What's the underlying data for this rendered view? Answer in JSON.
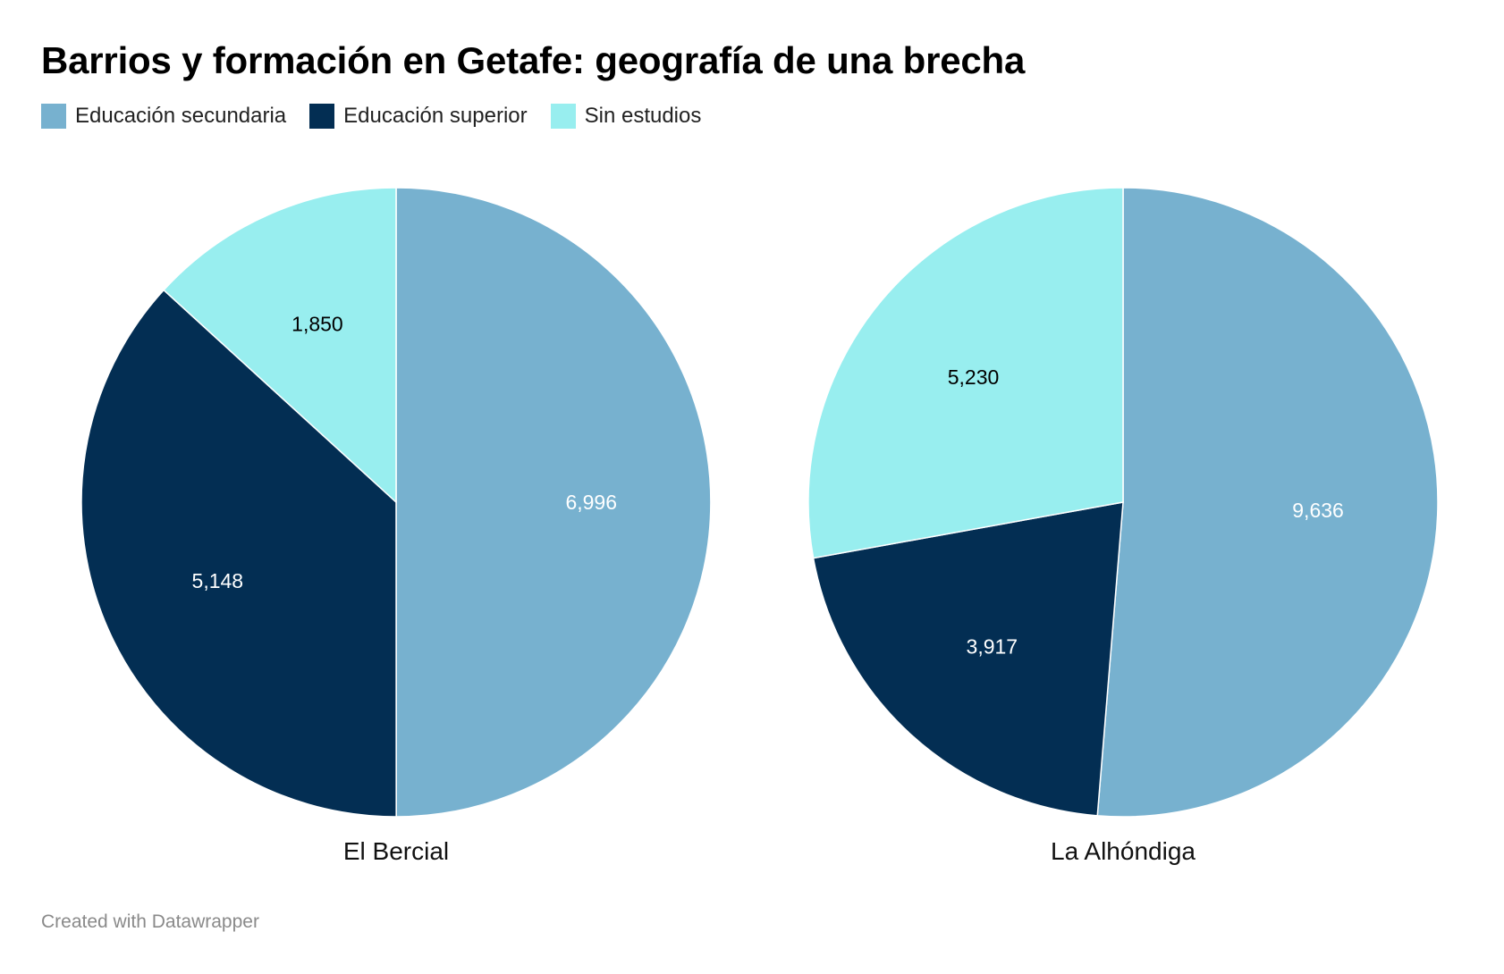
{
  "title": "Barrios y formación en Getafe: geografía de una brecha",
  "footer": "Created with Datawrapper",
  "legend": [
    {
      "label": "Educación secundaria",
      "color": "#77b1cf"
    },
    {
      "label": "Educación superior",
      "color": "#032e53"
    },
    {
      "label": "Sin estudios",
      "color": "#98eeef"
    }
  ],
  "chart_data": [
    {
      "type": "pie",
      "title": "El Bercial",
      "categories": [
        "Educación secundaria",
        "Educación superior",
        "Sin estudios"
      ],
      "values": [
        6996,
        5148,
        1850
      ],
      "labels": [
        "6,996",
        "5,148",
        "1,850"
      ],
      "colors": [
        "#77b1cf",
        "#032e53",
        "#98eeef"
      ],
      "label_colors": [
        "#ffffff",
        "#ffffff",
        "#000000"
      ]
    },
    {
      "type": "pie",
      "title": "La Alhóndiga",
      "categories": [
        "Educación secundaria",
        "Educación superior",
        "Sin estudios"
      ],
      "values": [
        9636,
        3917,
        5230
      ],
      "labels": [
        "9,636",
        "3,917",
        "5,230"
      ],
      "colors": [
        "#77b1cf",
        "#032e53",
        "#98eeef"
      ],
      "label_colors": [
        "#ffffff",
        "#ffffff",
        "#000000"
      ]
    }
  ]
}
